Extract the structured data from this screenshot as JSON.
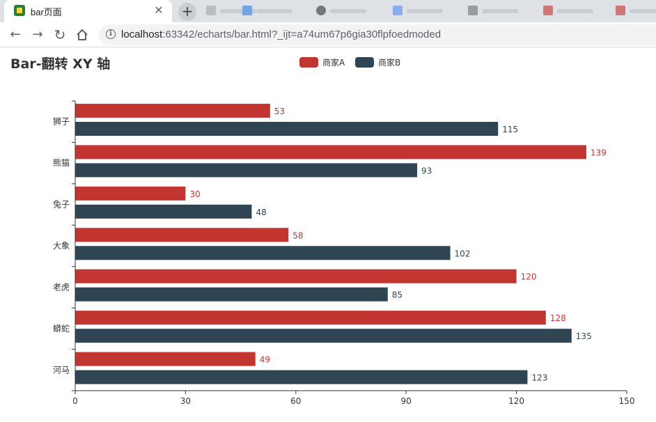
{
  "browser": {
    "tab_title": "bar页面",
    "close_glyph": "✕",
    "new_tab_glyph": "+",
    "url_host": "localhost",
    "url_rest": ":63342/echarts/bar.html?_ijt=a74um67p6gia30flpfoedmoded",
    "back_glyph": "←",
    "forward_glyph": "→",
    "reload_glyph": "↻",
    "info_glyph": "i",
    "icons": [
      "favicon-icon",
      "close-icon",
      "new-tab-icon",
      "back-icon",
      "forward-icon",
      "reload-icon",
      "home-icon",
      "info-icon"
    ]
  },
  "chart_data": {
    "type": "bar",
    "orientation": "horizontal",
    "title": "Bar-翻转 XY 轴",
    "categories": [
      "狮子",
      "熊猫",
      "兔子",
      "大象",
      "老虎",
      "蟒蛇",
      "河马"
    ],
    "series": [
      {
        "name": "商家A",
        "color": "#c23531",
        "values": [
          53,
          139,
          30,
          58,
          120,
          128,
          49
        ]
      },
      {
        "name": "商家B",
        "color": "#2f4554",
        "values": [
          115,
          93,
          48,
          102,
          85,
          135,
          123
        ]
      }
    ],
    "xaxis": {
      "min": 0,
      "max": 150,
      "ticks": [
        0,
        30,
        60,
        90,
        120,
        150
      ]
    },
    "legend_position": "top-center",
    "grid": false,
    "data_labels": "right"
  }
}
